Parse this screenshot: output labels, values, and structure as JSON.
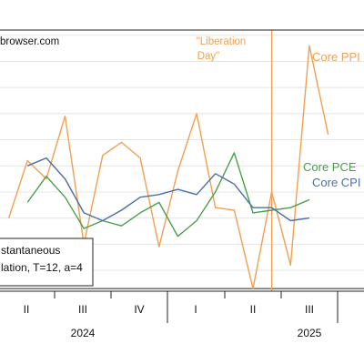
{
  "watermark": "browser.com",
  "chart_data": {
    "type": "line",
    "x_quarter_labels": [
      "II",
      "III",
      "IV",
      "I",
      "II",
      "III"
    ],
    "x_years": [
      "2024",
      "2025"
    ],
    "x": [
      "2024-03",
      "2024-04",
      "2024-05",
      "2024-06",
      "2024-07",
      "2024-08",
      "2024-09",
      "2024-10",
      "2024-11",
      "2024-12",
      "2025-01",
      "2025-02",
      "2025-03",
      "2025-04",
      "2025-05",
      "2025-06",
      "2025-07"
    ],
    "series": [
      {
        "name": "Core PPI",
        "color": "#f0a050",
        "x": [
          "2024-02",
          "2024-03",
          "2024-04",
          "2024-05",
          "2024-06",
          "2024-07",
          "2024-08",
          "2024-09",
          "2024-10",
          "2024-11",
          "2024-12",
          "2025-01",
          "2025-02",
          "2025-03",
          "2025-04",
          "2025-05",
          "2025-06",
          "2025-07"
        ],
        "values": [
          2.0,
          4.2,
          3.5,
          5.9,
          1.0,
          4.4,
          4.9,
          4.3,
          0.9,
          3.8,
          6.0,
          2.4,
          2.3,
          -0.7,
          3.0,
          0.2,
          8.6,
          5.2
        ]
      },
      {
        "name": "Core PCE",
        "color": "#4aa04a",
        "x": [
          "2024-03",
          "2024-04",
          "2024-05",
          "2024-06",
          "2024-07",
          "2024-08",
          "2024-09",
          "2024-10",
          "2024-11",
          "2024-12",
          "2025-01",
          "2025-02",
          "2025-03",
          "2025-04",
          "2025-05",
          "2025-06"
        ],
        "values": [
          2.6,
          3.6,
          2.8,
          1.6,
          1.9,
          1.7,
          2.2,
          2.6,
          1.3,
          1.9,
          3.0,
          4.5,
          2.2,
          2.3,
          2.4,
          2.7
        ]
      },
      {
        "name": "Core CPI",
        "color": "#4a6fa5",
        "x": [
          "2024-03",
          "2024-04",
          "2024-05",
          "2024-06",
          "2024-07",
          "2024-08",
          "2024-09",
          "2024-10",
          "2024-11",
          "2024-12",
          "2025-01",
          "2025-02",
          "2025-03",
          "2025-04",
          "2025-05",
          "2025-06"
        ],
        "values": [
          4.0,
          4.3,
          3.5,
          2.2,
          1.9,
          2.3,
          2.8,
          2.9,
          3.1,
          2.9,
          3.7,
          3.3,
          2.4,
          2.4,
          1.9,
          2.0
        ]
      }
    ],
    "y_range": [
      -0.8,
      9.2
    ],
    "grid": "horizontal",
    "vline": {
      "x": "2025-04",
      "label_line1": "\"Liberation",
      "label_line2": "Day\"",
      "color": "#f0a050"
    },
    "hline_value": -0.7,
    "legend": {
      "line1": "stantaneous",
      "line2": "lation, T=12, a=4"
    }
  }
}
